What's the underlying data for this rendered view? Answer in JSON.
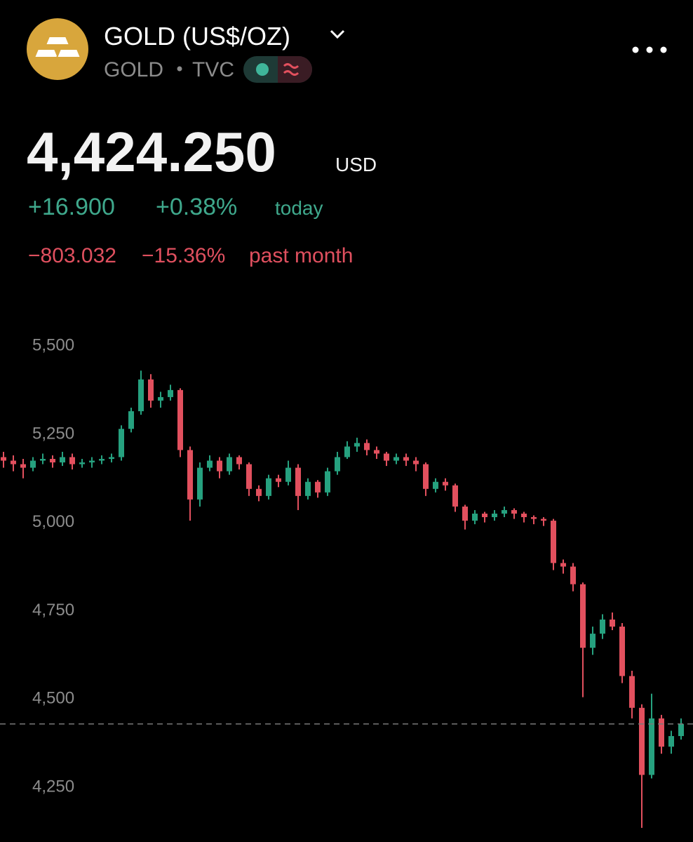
{
  "header": {
    "title": "GOLD (US$/OZ)",
    "symbol": "GOLD",
    "exchange": "TVC",
    "price": "4,424.250",
    "currency": "USD",
    "change_today": "+16.900",
    "change_today_pct": "+0.38%",
    "today_label": "today",
    "change_month": "−803.032",
    "change_month_pct": "−15.36%",
    "month_label": "past month"
  },
  "chart_data": {
    "type": "candlestick",
    "up_color": "#26a17f",
    "down_color": "#e2505e",
    "ylim": [
      4090,
      5640
    ],
    "yticks": [
      {
        "value": 5500,
        "label": "5,500"
      },
      {
        "value": 5250,
        "label": "5,250"
      },
      {
        "value": 5000,
        "label": "5,000"
      },
      {
        "value": 4750,
        "label": "4,750"
      },
      {
        "value": 4500,
        "label": "4,500"
      },
      {
        "value": 4250,
        "label": "4,250"
      }
    ],
    "last_price": 4424.25,
    "open": [
      5180,
      5170,
      5160,
      5150,
      5170,
      5175,
      5165,
      5180,
      5160,
      5165,
      5170,
      5175,
      5180,
      5260,
      5310,
      5400,
      5340,
      5350,
      5370,
      5200,
      5060,
      5150,
      5170,
      5140,
      5180,
      5160,
      5090,
      5070,
      5120,
      5110,
      5150,
      5070,
      5110,
      5080,
      5140,
      5180,
      5210,
      5220,
      5200,
      5190,
      5170,
      5180,
      5170,
      5160,
      5090,
      5110,
      5100,
      5040,
      5000,
      5020,
      5010,
      5020,
      5030,
      5020,
      5010,
      5005,
      5000,
      4880,
      4870,
      4820,
      4640,
      4680,
      4720,
      4700,
      4560,
      4470,
      4280,
      4440,
      4360,
      4390
    ],
    "high": [
      5195,
      5185,
      5175,
      5180,
      5190,
      5185,
      5195,
      5190,
      5175,
      5180,
      5185,
      5190,
      5270,
      5320,
      5425,
      5415,
      5365,
      5385,
      5375,
      5210,
      5165,
      5185,
      5180,
      5190,
      5185,
      5165,
      5100,
      5130,
      5130,
      5170,
      5160,
      5120,
      5115,
      5150,
      5195,
      5225,
      5235,
      5230,
      5210,
      5195,
      5190,
      5190,
      5180,
      5165,
      5120,
      5120,
      5105,
      5045,
      5030,
      5025,
      5030,
      5040,
      5035,
      5025,
      5015,
      5010,
      5005,
      4890,
      4880,
      4825,
      4700,
      4735,
      4740,
      4710,
      4575,
      4480,
      4510,
      4450,
      4405,
      4440
    ],
    "low": [
      5150,
      5140,
      5120,
      5140,
      5160,
      5150,
      5155,
      5145,
      5150,
      5150,
      5160,
      5165,
      5170,
      5250,
      5300,
      5320,
      5320,
      5340,
      5180,
      5000,
      5040,
      5140,
      5120,
      5130,
      5145,
      5070,
      5055,
      5060,
      5095,
      5100,
      5030,
      5060,
      5065,
      5070,
      5130,
      5175,
      5195,
      5185,
      5175,
      5155,
      5160,
      5155,
      5140,
      5070,
      5080,
      5085,
      5025,
      4975,
      4990,
      4995,
      5000,
      5010,
      5005,
      4995,
      4990,
      4985,
      4860,
      4850,
      4800,
      4500,
      4620,
      4665,
      4690,
      4540,
      4440,
      4130,
      4270,
      4340,
      4340,
      4380
    ],
    "close": [
      5170,
      5160,
      5150,
      5170,
      5175,
      5165,
      5180,
      5160,
      5165,
      5170,
      5175,
      5180,
      5260,
      5310,
      5400,
      5340,
      5350,
      5370,
      5200,
      5060,
      5150,
      5170,
      5140,
      5180,
      5160,
      5090,
      5070,
      5120,
      5110,
      5150,
      5070,
      5110,
      5080,
      5140,
      5180,
      5210,
      5220,
      5200,
      5190,
      5170,
      5180,
      5170,
      5160,
      5090,
      5110,
      5100,
      5040,
      5000,
      5020,
      5010,
      5020,
      5030,
      5020,
      5010,
      5005,
      5000,
      4880,
      4870,
      4820,
      4640,
      4680,
      4720,
      4700,
      4560,
      4470,
      4280,
      4440,
      4360,
      4390,
      4424.25
    ]
  }
}
